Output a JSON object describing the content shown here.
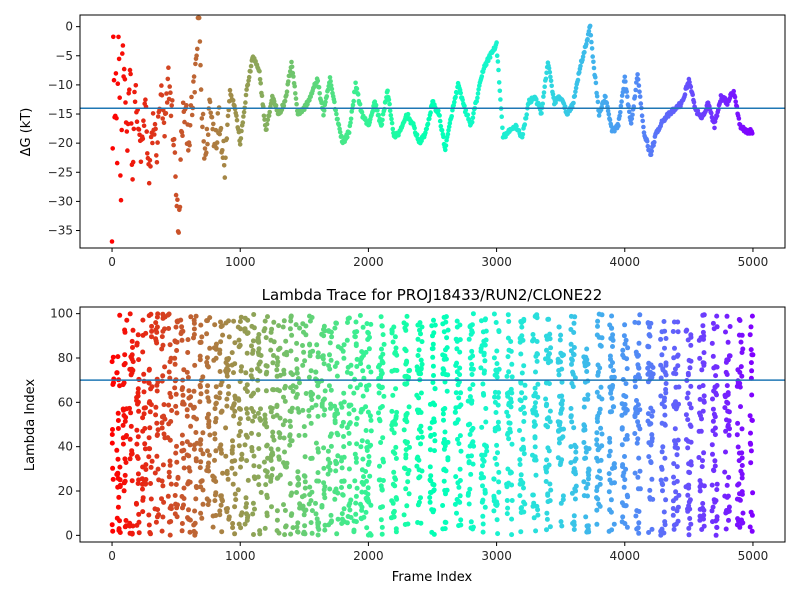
{
  "chart_data": [
    {
      "type": "scatter",
      "title": "",
      "xlabel": "",
      "ylabel": "ΔG (kT)",
      "xlim": [
        -250,
        5250
      ],
      "ylim": [
        -38,
        2
      ],
      "xticks": [
        0,
        1000,
        2000,
        3000,
        4000,
        5000
      ],
      "yticks": [
        0,
        -5,
        -10,
        -15,
        -20,
        -25,
        -30,
        -35
      ],
      "colormap": "rainbow (red at frame 0 → violet at frame 5000)",
      "hline": -14,
      "hline_color": "#1f77b4",
      "description_of_series": "Running free-energy estimate per frame: noisy early (frames 0-900), then a piecewise-smooth trajectory",
      "anchors": [
        [
          0,
          -34
        ],
        [
          10,
          -2
        ],
        [
          20,
          -18
        ],
        [
          30,
          -8
        ],
        [
          40,
          -24
        ],
        [
          50,
          1
        ],
        [
          60,
          -15
        ],
        [
          70,
          -31
        ],
        [
          80,
          -4
        ],
        [
          100,
          -12
        ],
        [
          120,
          -20
        ],
        [
          140,
          -5
        ],
        [
          160,
          -26
        ],
        [
          180,
          -10
        ],
        [
          200,
          -17
        ],
        [
          230,
          -22
        ],
        [
          260,
          -13
        ],
        [
          290,
          -27
        ],
        [
          320,
          -16
        ],
        [
          350,
          -21
        ],
        [
          380,
          -11
        ],
        [
          410,
          -19
        ],
        [
          440,
          -9
        ],
        [
          470,
          -15
        ],
        [
          500,
          -27
        ],
        [
          520,
          -37
        ],
        [
          540,
          -20
        ],
        [
          560,
          -14
        ],
        [
          600,
          -19
        ],
        [
          640,
          -11
        ],
        [
          680,
          2
        ],
        [
          700,
          -15
        ],
        [
          730,
          -23
        ],
        [
          760,
          -13
        ],
        [
          800,
          -19
        ],
        [
          840,
          -16
        ],
        [
          880,
          -23
        ],
        [
          920,
          -11
        ],
        [
          960,
          -14
        ],
        [
          1000,
          -20
        ],
        [
          1050,
          -11
        ],
        [
          1100,
          -5
        ],
        [
          1150,
          -8
        ],
        [
          1200,
          -18
        ],
        [
          1250,
          -12
        ],
        [
          1300,
          -15
        ],
        [
          1350,
          -13
        ],
        [
          1400,
          -6
        ],
        [
          1450,
          -15
        ],
        [
          1500,
          -14
        ],
        [
          1550,
          -12
        ],
        [
          1600,
          -9
        ],
        [
          1650,
          -15
        ],
        [
          1700,
          -9
        ],
        [
          1750,
          -15
        ],
        [
          1800,
          -20
        ],
        [
          1850,
          -18
        ],
        [
          1900,
          -10
        ],
        [
          1950,
          -15
        ],
        [
          2000,
          -17
        ],
        [
          2050,
          -13
        ],
        [
          2100,
          -17
        ],
        [
          2150,
          -11
        ],
        [
          2200,
          -19
        ],
        [
          2250,
          -18
        ],
        [
          2300,
          -15
        ],
        [
          2350,
          -17
        ],
        [
          2400,
          -20
        ],
        [
          2450,
          -18
        ],
        [
          2500,
          -13
        ],
        [
          2550,
          -15
        ],
        [
          2600,
          -21
        ],
        [
          2650,
          -15
        ],
        [
          2700,
          -10
        ],
        [
          2750,
          -14
        ],
        [
          2800,
          -17
        ],
        [
          2850,
          -12
        ],
        [
          2900,
          -7
        ],
        [
          2950,
          -5
        ],
        [
          3000,
          -3
        ],
        [
          3050,
          -19
        ],
        [
          3100,
          -18
        ],
        [
          3150,
          -17
        ],
        [
          3200,
          -19
        ],
        [
          3250,
          -13
        ],
        [
          3300,
          -12
        ],
        [
          3350,
          -15
        ],
        [
          3400,
          -6
        ],
        [
          3450,
          -13
        ],
        [
          3500,
          -12
        ],
        [
          3550,
          -15
        ],
        [
          3600,
          -13
        ],
        [
          3650,
          -7
        ],
        [
          3700,
          -3
        ],
        [
          3730,
          0
        ],
        [
          3750,
          -5
        ],
        [
          3800,
          -15
        ],
        [
          3850,
          -12
        ],
        [
          3900,
          -18
        ],
        [
          3950,
          -17
        ],
        [
          4000,
          -9
        ],
        [
          4050,
          -17
        ],
        [
          4100,
          -8
        ],
        [
          4150,
          -18
        ],
        [
          4200,
          -22
        ],
        [
          4250,
          -18
        ],
        [
          4300,
          -16
        ],
        [
          4350,
          -15
        ],
        [
          4400,
          -14
        ],
        [
          4450,
          -13
        ],
        [
          4500,
          -9
        ],
        [
          4550,
          -14
        ],
        [
          4600,
          -16
        ],
        [
          4650,
          -13
        ],
        [
          4700,
          -17
        ],
        [
          4750,
          -12
        ],
        [
          4800,
          -13
        ],
        [
          4850,
          -11
        ],
        [
          4900,
          -17
        ],
        [
          4950,
          -18
        ],
        [
          5000,
          -18
        ]
      ]
    },
    {
      "type": "scatter",
      "title": "Lambda Trace for PROJ18433/RUN2/CLONE22",
      "xlabel": "Frame Index",
      "ylabel": "Lambda Index",
      "xlim": [
        -250,
        5250
      ],
      "ylim": [
        -3,
        103
      ],
      "xticks": [
        0,
        1000,
        2000,
        3000,
        4000,
        5000
      ],
      "yticks": [
        0,
        20,
        40,
        60,
        80,
        100
      ],
      "colormap": "rainbow (red at frame 0 → violet at frame 5000)",
      "hline": 70,
      "hline_color": "#1f77b4",
      "value_range": [
        0,
        100
      ],
      "frames": [
        0,
        5000
      ],
      "point_count": 2500,
      "columns": [
        [
          0,
          0,
          100
        ],
        [
          50,
          0,
          100
        ],
        [
          100,
          0,
          100
        ],
        [
          150,
          0,
          100
        ],
        [
          200,
          0,
          100
        ],
        [
          250,
          0,
          100
        ],
        [
          300,
          0,
          100
        ],
        [
          350,
          0,
          100
        ],
        [
          400,
          0,
          100
        ],
        [
          450,
          0,
          100
        ],
        [
          500,
          0,
          100
        ],
        [
          550,
          0,
          100
        ],
        [
          600,
          0,
          100
        ],
        [
          650,
          0,
          100
        ],
        [
          700,
          0,
          100
        ],
        [
          750,
          0,
          100
        ],
        [
          800,
          0,
          100
        ],
        [
          850,
          0,
          100
        ],
        [
          900,
          0,
          100
        ],
        [
          950,
          0,
          100
        ],
        [
          1000,
          0,
          100
        ],
        [
          1050,
          0,
          100
        ],
        [
          1100,
          0,
          100
        ],
        [
          1150,
          0,
          100
        ],
        [
          1200,
          0,
          100
        ],
        [
          1250,
          0,
          100
        ],
        [
          1300,
          0,
          100
        ],
        [
          1350,
          0,
          100
        ],
        [
          1400,
          0,
          100
        ],
        [
          1450,
          0,
          100
        ],
        [
          1500,
          0,
          100
        ],
        [
          1550,
          0,
          100
        ],
        [
          1600,
          0,
          100
        ],
        [
          1650,
          0,
          100
        ],
        [
          1700,
          0,
          100
        ],
        [
          1750,
          0,
          100
        ],
        [
          1800,
          0,
          100
        ],
        [
          1850,
          0,
          100
        ],
        [
          1900,
          0,
          100
        ],
        [
          1950,
          0,
          100
        ],
        [
          2000,
          0,
          100
        ],
        [
          2100,
          0,
          100
        ],
        [
          2200,
          0,
          100
        ],
        [
          2300,
          0,
          100
        ],
        [
          2400,
          0,
          100
        ],
        [
          2500,
          0,
          100
        ],
        [
          2600,
          0,
          100
        ],
        [
          2700,
          0,
          100
        ],
        [
          2800,
          0,
          100
        ],
        [
          2900,
          0,
          100
        ],
        [
          3000,
          0,
          100
        ],
        [
          3100,
          0,
          100
        ],
        [
          3200,
          0,
          100
        ],
        [
          3300,
          0,
          100
        ],
        [
          3400,
          0,
          100
        ],
        [
          3500,
          0,
          100
        ],
        [
          3600,
          0,
          100
        ],
        [
          3700,
          0,
          100
        ],
        [
          3800,
          0,
          100
        ],
        [
          3900,
          0,
          100
        ],
        [
          4000,
          0,
          100
        ],
        [
          4100,
          0,
          100
        ],
        [
          4200,
          0,
          100
        ],
        [
          4300,
          0,
          100
        ],
        [
          4400,
          0,
          100
        ],
        [
          4500,
          0,
          100
        ],
        [
          4600,
          0,
          100
        ],
        [
          4700,
          0,
          100
        ],
        [
          4800,
          0,
          100
        ],
        [
          4900,
          0,
          100
        ],
        [
          5000,
          0,
          100
        ]
      ]
    }
  ]
}
